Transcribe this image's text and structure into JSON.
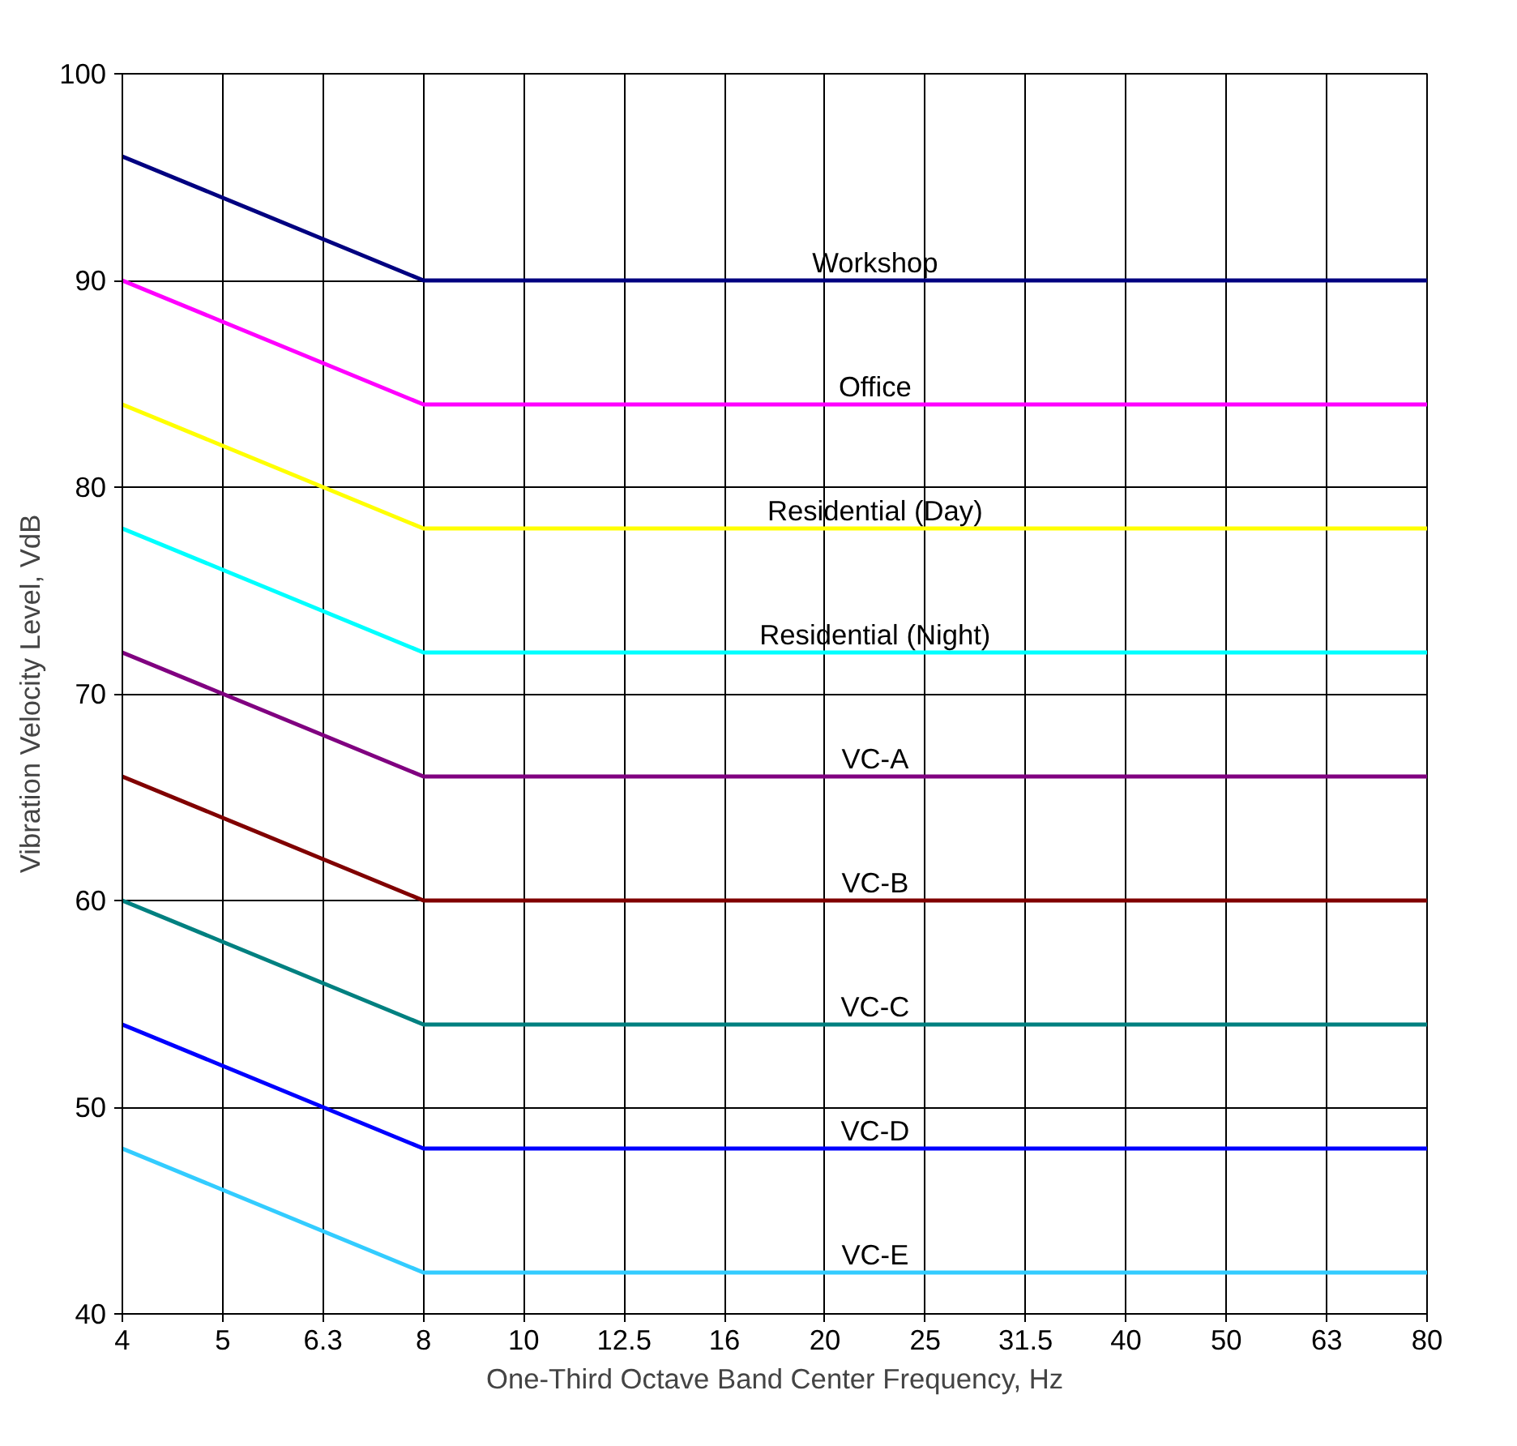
{
  "chart_data": {
    "type": "line",
    "xlabel": "One-Third Octave Band Center Frequency, Hz",
    "ylabel": "Vibration Velocity Level, VdB",
    "categories": [
      "4",
      "5",
      "6.3",
      "8",
      "10",
      "12.5",
      "16",
      "20",
      "25",
      "31.5",
      "40",
      "50",
      "63",
      "80"
    ],
    "ylim": [
      40,
      100
    ],
    "yticks": [
      40,
      50,
      60,
      70,
      80,
      90,
      100
    ],
    "grid": true,
    "marker": "none",
    "line_style": "solid",
    "series": [
      {
        "name": "Workshop",
        "color": "#000080",
        "values": [
          96,
          94,
          92,
          90,
          90,
          90,
          90,
          90,
          90,
          90,
          90,
          90,
          90,
          90
        ]
      },
      {
        "name": "Office",
        "color": "#ff00ff",
        "values": [
          90,
          88,
          86,
          84,
          84,
          84,
          84,
          84,
          84,
          84,
          84,
          84,
          84,
          84
        ]
      },
      {
        "name": "Residential (Day)",
        "color": "#ffff00",
        "values": [
          84,
          82,
          80,
          78,
          78,
          78,
          78,
          78,
          78,
          78,
          78,
          78,
          78,
          78
        ]
      },
      {
        "name": "Residential (Night)",
        "color": "#00ffff",
        "values": [
          78,
          76,
          74,
          72,
          72,
          72,
          72,
          72,
          72,
          72,
          72,
          72,
          72,
          72
        ]
      },
      {
        "name": "VC-A",
        "color": "#800080",
        "values": [
          72,
          70,
          68,
          66,
          66,
          66,
          66,
          66,
          66,
          66,
          66,
          66,
          66,
          66
        ]
      },
      {
        "name": "VC-B",
        "color": "#800000",
        "values": [
          66,
          64,
          62,
          60,
          60,
          60,
          60,
          60,
          60,
          60,
          60,
          60,
          60,
          60
        ]
      },
      {
        "name": "VC-C",
        "color": "#008080",
        "values": [
          60,
          58,
          56,
          54,
          54,
          54,
          54,
          54,
          54,
          54,
          54,
          54,
          54,
          54
        ]
      },
      {
        "name": "VC-D",
        "color": "#0000ff",
        "values": [
          54,
          52,
          50,
          48,
          48,
          48,
          48,
          48,
          48,
          48,
          48,
          48,
          48,
          48
        ]
      },
      {
        "name": "VC-E",
        "color": "#33ccff",
        "values": [
          48,
          46,
          44,
          42,
          42,
          42,
          42,
          42,
          42,
          42,
          42,
          42,
          42,
          42
        ]
      }
    ]
  }
}
